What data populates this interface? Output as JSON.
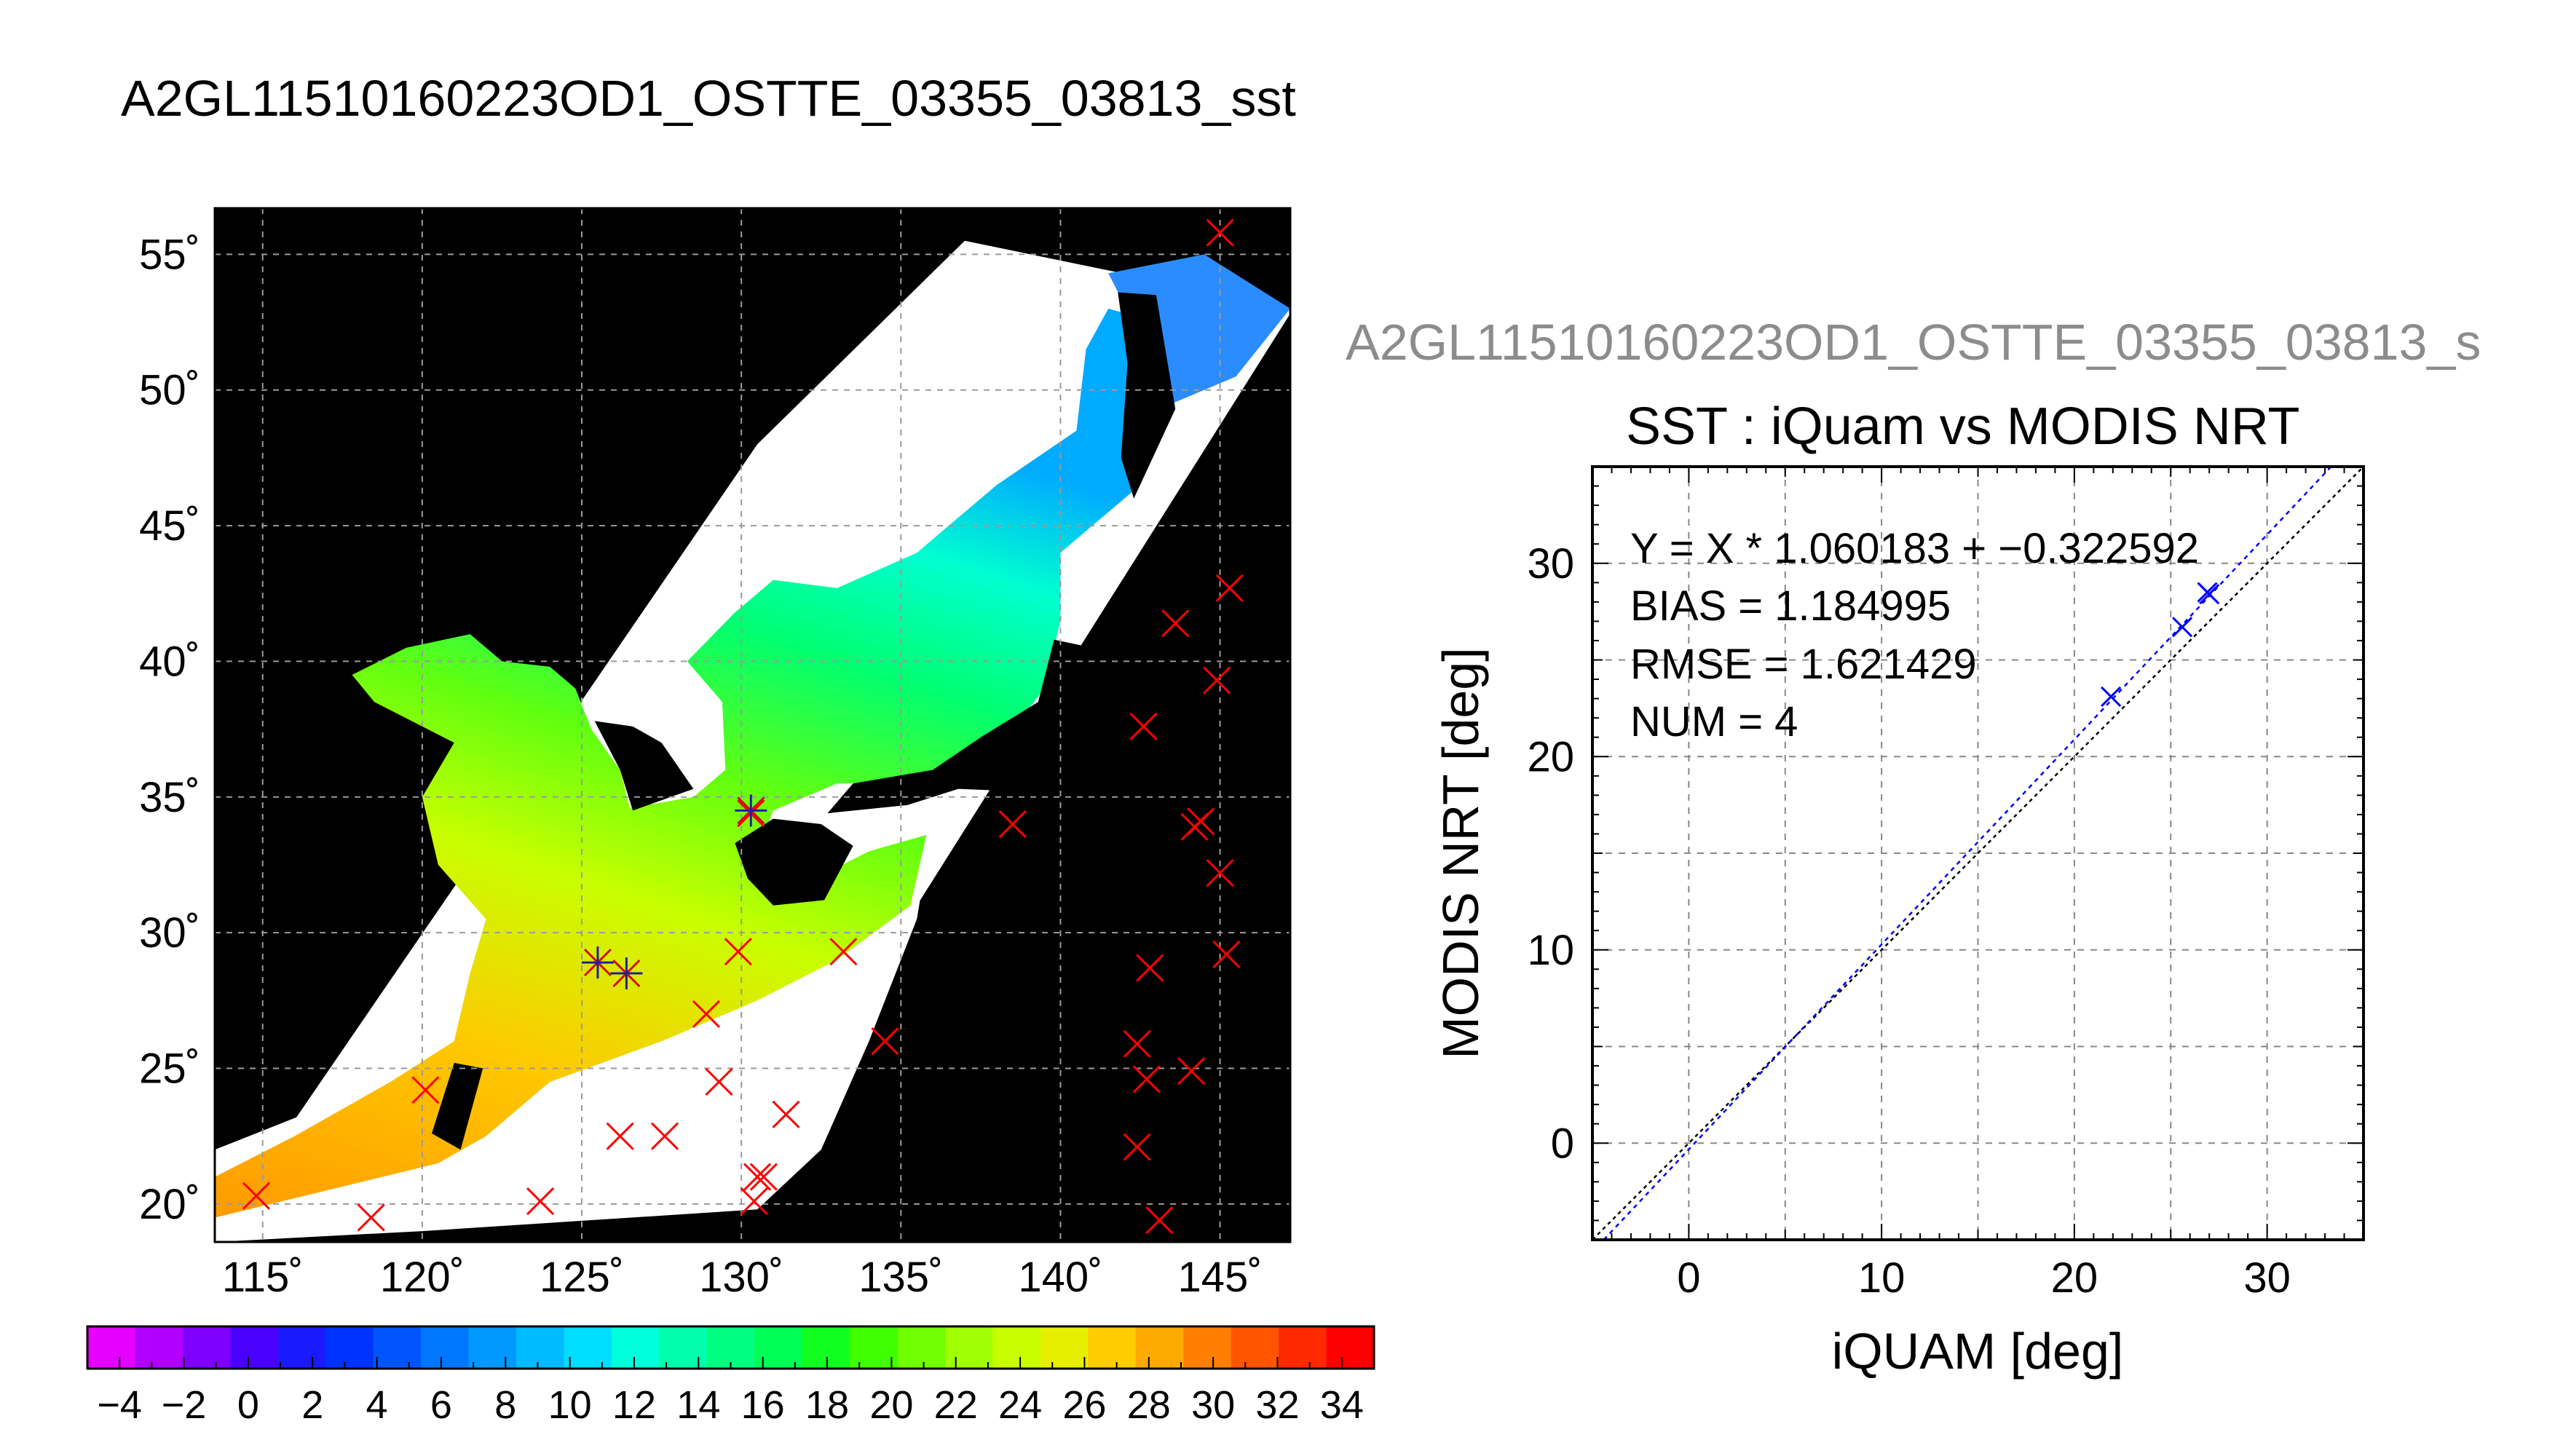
{
  "title": "A2GL11510160223OD1_OSTTE_03355_03813_sst",
  "side_title": "A2GL11510160223OD1_OSTTE_03355_03813_s",
  "chart_data": [
    {
      "type": "map",
      "title": "A2GL11510160223OD1_OSTTE_03355_03813_sst",
      "lon_ticks": [
        "115˚",
        "120˚",
        "125˚",
        "130˚",
        "135˚",
        "140˚",
        "145˚"
      ],
      "lat_ticks": [
        "20˚",
        "25˚",
        "30˚",
        "35˚",
        "40˚",
        "45˚",
        "50˚",
        "55˚"
      ],
      "lon_range": [
        113.5,
        147.2
      ],
      "lat_range": [
        18.6,
        56.7
      ],
      "grid": true,
      "colorbar": {
        "ticks": [
          "−4",
          "−2",
          "0",
          "2",
          "4",
          "6",
          "8",
          "10",
          "12",
          "14",
          "16",
          "18",
          "20",
          "22",
          "24",
          "26",
          "28",
          "30",
          "32",
          "34"
        ],
        "range": [
          -5,
          35
        ],
        "colors": [
          "#e600ff",
          "#b200ff",
          "#8000ff",
          "#4a00ff",
          "#1a1aff",
          "#0033ff",
          "#0055ff",
          "#0077ff",
          "#0099ff",
          "#00bbff",
          "#00ddff",
          "#00ffdd",
          "#00ffaa",
          "#00ff80",
          "#00ff55",
          "#10ff20",
          "#40ff00",
          "#70ff00",
          "#a0ff00",
          "#c8ff00",
          "#e8ee00",
          "#ffcc00",
          "#ffaa00",
          "#ff8000",
          "#ff5500",
          "#ff2a00",
          "#ff0000"
        ]
      },
      "markers_red_x": [
        [
          114.8,
          20.3
        ],
        [
          118.4,
          19.5
        ],
        [
          120.1,
          24.2
        ],
        [
          123.7,
          20.1
        ],
        [
          126.2,
          22.5
        ],
        [
          127.6,
          22.5
        ],
        [
          128.9,
          27.0
        ],
        [
          129.3,
          24.5
        ],
        [
          129.9,
          29.3
        ],
        [
          130.3,
          34.4
        ],
        [
          130.5,
          21.0
        ],
        [
          130.7,
          21.0
        ],
        [
          130.4,
          20.1
        ],
        [
          131.4,
          23.3
        ],
        [
          133.2,
          29.3
        ],
        [
          134.5,
          26.0
        ],
        [
          138.5,
          34.0
        ],
        [
          142.4,
          25.9
        ],
        [
          142.4,
          22.1
        ],
        [
          142.7,
          24.6
        ],
        [
          142.8,
          28.7
        ],
        [
          142.6,
          37.6
        ],
        [
          143.1,
          19.4
        ],
        [
          143.6,
          41.4
        ],
        [
          144.1,
          24.9
        ],
        [
          144.2,
          33.9
        ],
        [
          144.4,
          34.1
        ],
        [
          144.9,
          39.3
        ],
        [
          145.0,
          32.2
        ],
        [
          145.2,
          29.2
        ],
        [
          145.3,
          42.7
        ],
        [
          145.0,
          55.8
        ]
      ],
      "markers_blue_star": [
        [
          125.5,
          28.9
        ],
        [
          126.4,
          28.5
        ],
        [
          130.3,
          34.5
        ]
      ]
    },
    {
      "type": "scatter",
      "title": "SST : iQuam vs MODIS NRT",
      "xlabel": "iQUAM [deg]",
      "ylabel": "MODIS NRT [deg]",
      "xlim": [
        -5,
        35
      ],
      "ylim": [
        -5,
        35
      ],
      "xticks": [
        "0",
        "10",
        "20",
        "30"
      ],
      "yticks": [
        "0",
        "10",
        "20",
        "30"
      ],
      "grid": true,
      "stats": {
        "fit": "Y = X * 1.060183 + −0.322592",
        "bias": "BIAS = 1.184995",
        "rmse": "RMSE = 1.621429",
        "num": "NUM = 4"
      },
      "fit_line": {
        "slope": 1.060183,
        "intercept": -0.322592,
        "color": "#0000ff"
      },
      "identity_line": {
        "slope": 1,
        "intercept": 0,
        "color": "#000000"
      },
      "points": [
        [
          21.9,
          23.1
        ],
        [
          25.6,
          26.7
        ],
        [
          26.9,
          28.5
        ],
        [
          27.0,
          28.4
        ]
      ],
      "point_color": "#0000ff"
    }
  ]
}
